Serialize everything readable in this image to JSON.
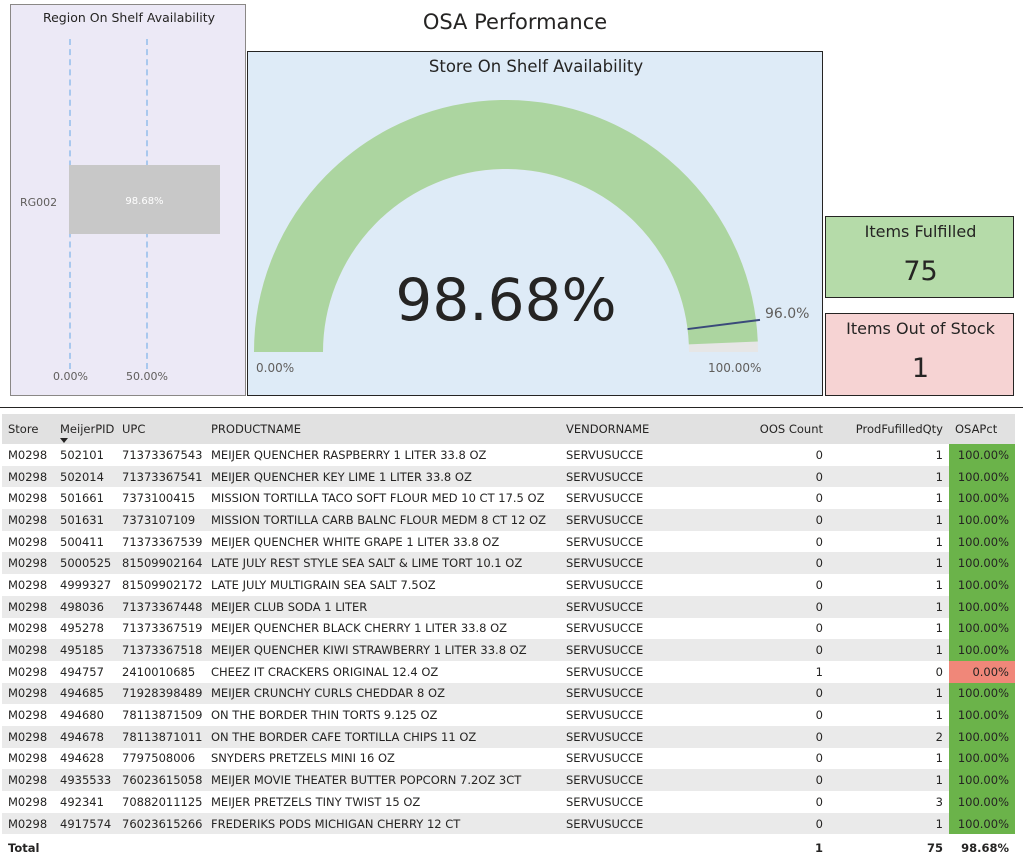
{
  "dashboard_title": "OSA Performance",
  "region_chart": {
    "title": "Region On Shelf Availability",
    "category": "RG002",
    "value_label": "98.68%",
    "x_ticks": [
      "0.00%",
      "50.00%"
    ]
  },
  "gauge": {
    "title": "Store On Shelf Availability",
    "value_label": "98.68%",
    "min_label": "0.00%",
    "max_label": "100.00%",
    "target_label": "96.0%",
    "value": 98.68,
    "min": 0,
    "max": 100,
    "target": 96.0,
    "fill_color": "#acd5a0",
    "track_color": "#e6e6e6",
    "target_color": "#3a4a7a"
  },
  "cards": {
    "fulfilled": {
      "label": "Items Fulfilled",
      "value": "75"
    },
    "out_of_stock": {
      "label": "Items Out of Stock",
      "value": "1"
    }
  },
  "table": {
    "headers": [
      "Store",
      "MeijerPID",
      "UPC",
      "PRODUCTNAME",
      "VENDORNAME",
      "OOS Count",
      "ProdFufilledQty",
      "OSAPct"
    ],
    "rows": [
      [
        "M0298",
        "502101",
        "71373367543",
        "MEIJER QUENCHER RASPBERRY 1 LITER 33.8 OZ",
        "SERVUSUCCE",
        "0",
        "1",
        "100.00%"
      ],
      [
        "M0298",
        "502014",
        "71373367541",
        "MEIJER QUENCHER KEY LIME 1 LITER 33.8 OZ",
        "SERVUSUCCE",
        "0",
        "1",
        "100.00%"
      ],
      [
        "M0298",
        "501661",
        "7373100415",
        "MISSION TORTILLA TACO SOFT FLOUR MED 10 CT 17.5 OZ",
        "SERVUSUCCE",
        "0",
        "1",
        "100.00%"
      ],
      [
        "M0298",
        "501631",
        "7373107109",
        "MISSION TORTILLA CARB BALNC FLOUR MEDM 8 CT 12 OZ",
        "SERVUSUCCE",
        "0",
        "1",
        "100.00%"
      ],
      [
        "M0298",
        "500411",
        "71373367539",
        "MEIJER QUENCHER WHITE GRAPE 1 LITER 33.8 OZ",
        "SERVUSUCCE",
        "0",
        "1",
        "100.00%"
      ],
      [
        "M0298",
        "5000525",
        "81509902164",
        "LATE JULY REST STYLE SEA SALT & LIME TORT 10.1 OZ",
        "SERVUSUCCE",
        "0",
        "1",
        "100.00%"
      ],
      [
        "M0298",
        "4999327",
        "81509902172",
        "LATE JULY MULTIGRAIN SEA SALT 7.5OZ",
        "SERVUSUCCE",
        "0",
        "1",
        "100.00%"
      ],
      [
        "M0298",
        "498036",
        "71373367448",
        "MEIJER CLUB SODA 1 LITER",
        "SERVUSUCCE",
        "0",
        "1",
        "100.00%"
      ],
      [
        "M0298",
        "495278",
        "71373367519",
        "MEIJER QUENCHER BLACK CHERRY 1 LITER 33.8 OZ",
        "SERVUSUCCE",
        "0",
        "1",
        "100.00%"
      ],
      [
        "M0298",
        "495185",
        "71373367518",
        "MEIJER QUENCHER KIWI STRAWBERRY 1 LITER 33.8 OZ",
        "SERVUSUCCE",
        "0",
        "1",
        "100.00%"
      ],
      [
        "M0298",
        "494757",
        "2410010685",
        "CHEEZ IT CRACKERS ORIGINAL 12.4 OZ",
        "SERVUSUCCE",
        "1",
        "0",
        "0.00%"
      ],
      [
        "M0298",
        "494685",
        "71928398489",
        "MEIJER CRUNCHY CURLS CHEDDAR 8 OZ",
        "SERVUSUCCE",
        "0",
        "1",
        "100.00%"
      ],
      [
        "M0298",
        "494680",
        "78113871509",
        "ON THE BORDER THIN TORTS 9.125 OZ",
        "SERVUSUCCE",
        "0",
        "1",
        "100.00%"
      ],
      [
        "M0298",
        "494678",
        "78113871011",
        "ON THE BORDER CAFE TORTILLA CHIPS 11 OZ",
        "SERVUSUCCE",
        "0",
        "2",
        "100.00%"
      ],
      [
        "M0298",
        "494628",
        "7797508006",
        "SNYDERS PRETZELS MINI 16 OZ",
        "SERVUSUCCE",
        "0",
        "1",
        "100.00%"
      ],
      [
        "M0298",
        "4935533",
        "76023615058",
        "MEIJER MOVIE THEATER BUTTER POPCORN 7.2OZ 3CT",
        "SERVUSUCCE",
        "0",
        "1",
        "100.00%"
      ],
      [
        "M0298",
        "492341",
        "70882011125",
        "MEIJER PRETZELS TINY TWIST 15 OZ",
        "SERVUSUCCE",
        "0",
        "3",
        "100.00%"
      ],
      [
        "M0298",
        "4917574",
        "76023615266",
        "FREDERIKS PODS MICHIGAN CHERRY 12 CT",
        "SERVUSUCCE",
        "0",
        "1",
        "100.00%"
      ]
    ],
    "total": {
      "label": "Total",
      "oos": "1",
      "fulfilled": "75",
      "osa": "98.68%"
    },
    "osa_good_color": "#6bb34a",
    "osa_bad_color": "#f08779"
  }
}
